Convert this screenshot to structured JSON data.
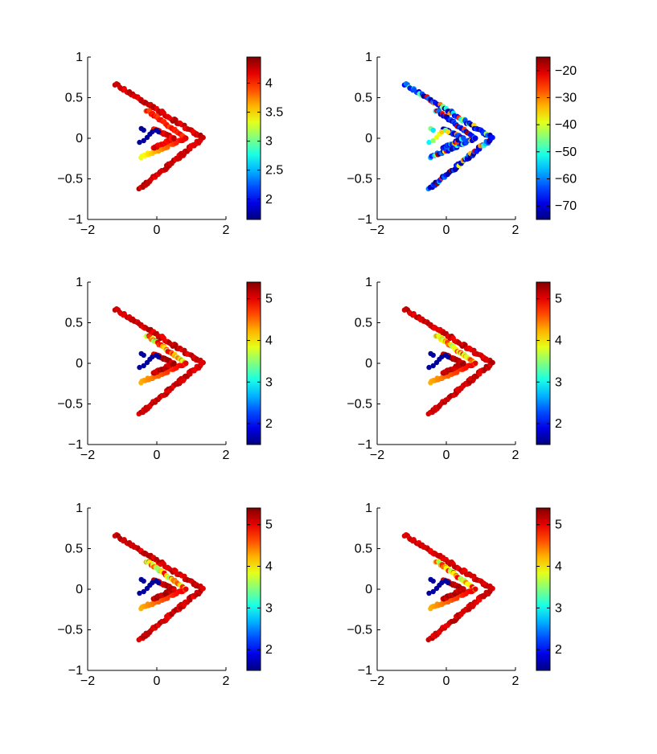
{
  "chart_data": [
    {
      "type": "scatter",
      "title": "",
      "xlabel": "",
      "ylabel": "",
      "xlim": [
        -2,
        2
      ],
      "ylim": [
        -1,
        1
      ],
      "x_ticks": [
        -2,
        0,
        2
      ],
      "y_ticks": [
        -1,
        -0.5,
        0,
        0.5,
        1
      ],
      "x_tick_labels": [
        "−2",
        "0",
        "2"
      ],
      "y_tick_labels": [
        "−1",
        "−0.5",
        "0",
        "0.5",
        "1"
      ],
      "colormap": "jet",
      "color_range": [
        1.65,
        4.45
      ],
      "colorbar_ticks": [
        2,
        2.5,
        3,
        3.5,
        4
      ],
      "colorbar_tick_labels": [
        "2",
        "2.5",
        "3",
        "3.5",
        "4"
      ],
      "pattern": "low",
      "grid": false
    },
    {
      "type": "scatter",
      "title": "",
      "xlabel": "",
      "ylabel": "",
      "xlim": [
        -2,
        2
      ],
      "ylim": [
        -1,
        1
      ],
      "x_ticks": [
        -2,
        0,
        2
      ],
      "y_ticks": [
        -1,
        -0.5,
        0,
        0.5,
        1
      ],
      "x_tick_labels": [
        "−2",
        "0",
        "2"
      ],
      "y_tick_labels": [
        "−1",
        "−0.5",
        "0",
        "0.5",
        "1"
      ],
      "colormap": "jet",
      "color_range": [
        -75,
        -15
      ],
      "colorbar_ticks": [
        -70,
        -60,
        -50,
        -40,
        -30,
        -20
      ],
      "colorbar_tick_labels": [
        "−70",
        "−60",
        "−50",
        "−40",
        "−30",
        "−20"
      ],
      "pattern": "mixed",
      "grid": false
    },
    {
      "type": "scatter",
      "title": "",
      "xlabel": "",
      "ylabel": "",
      "xlim": [
        -2,
        2
      ],
      "ylim": [
        -1,
        1
      ],
      "x_ticks": [
        -2,
        0,
        2
      ],
      "y_ticks": [
        -1,
        -0.5,
        0,
        0.5,
        1
      ],
      "x_tick_labels": [
        "−2",
        "0",
        "2"
      ],
      "y_tick_labels": [
        "−1",
        "−0.5",
        "0",
        "0.5",
        "1"
      ],
      "colormap": "jet",
      "color_range": [
        1.5,
        5.4
      ],
      "colorbar_ticks": [
        2,
        3,
        4,
        5
      ],
      "colorbar_tick_labels": [
        "2",
        "3",
        "4",
        "5"
      ],
      "pattern": "high",
      "grid": false
    },
    {
      "type": "scatter",
      "title": "",
      "xlabel": "",
      "ylabel": "",
      "xlim": [
        -2,
        2
      ],
      "ylim": [
        -1,
        1
      ],
      "x_ticks": [
        -2,
        0,
        2
      ],
      "y_ticks": [
        -1,
        -0.5,
        0,
        0.5,
        1
      ],
      "x_tick_labels": [
        "−2",
        "0",
        "2"
      ],
      "y_tick_labels": [
        "−1",
        "−0.5",
        "0",
        "0.5",
        "1"
      ],
      "colormap": "jet",
      "color_range": [
        1.5,
        5.4
      ],
      "colorbar_ticks": [
        2,
        3,
        4,
        5
      ],
      "colorbar_tick_labels": [
        "2",
        "3",
        "4",
        "5"
      ],
      "pattern": "high",
      "grid": false
    },
    {
      "type": "scatter",
      "title": "",
      "xlabel": "",
      "ylabel": "",
      "xlim": [
        -2,
        2
      ],
      "ylim": [
        -1,
        1
      ],
      "x_ticks": [
        -2,
        0,
        2
      ],
      "y_ticks": [
        -1,
        -0.5,
        0,
        0.5,
        1
      ],
      "x_tick_labels": [
        "−2",
        "0",
        "2"
      ],
      "y_tick_labels": [
        "−1",
        "−0.5",
        "0",
        "0.5",
        "1"
      ],
      "colormap": "jet",
      "color_range": [
        1.5,
        5.4
      ],
      "colorbar_ticks": [
        2,
        3,
        4,
        5
      ],
      "colorbar_tick_labels": [
        "2",
        "3",
        "4",
        "5"
      ],
      "pattern": "high",
      "grid": false
    },
    {
      "type": "scatter",
      "title": "",
      "xlabel": "",
      "ylabel": "",
      "xlim": [
        -2,
        2
      ],
      "ylim": [
        -1,
        1
      ],
      "x_ticks": [
        -2,
        0,
        2
      ],
      "y_ticks": [
        -1,
        -0.5,
        0,
        0.5,
        1
      ],
      "x_tick_labels": [
        "−2",
        "0",
        "2"
      ],
      "y_tick_labels": [
        "−1",
        "−0.5",
        "0",
        "0.5",
        "1"
      ],
      "colormap": "jet",
      "color_range": [
        1.5,
        5.4
      ],
      "colorbar_ticks": [
        2,
        3,
        4,
        5
      ],
      "colorbar_tick_labels": [
        "2",
        "3",
        "4",
        "5"
      ],
      "pattern": "high",
      "grid": false
    }
  ]
}
